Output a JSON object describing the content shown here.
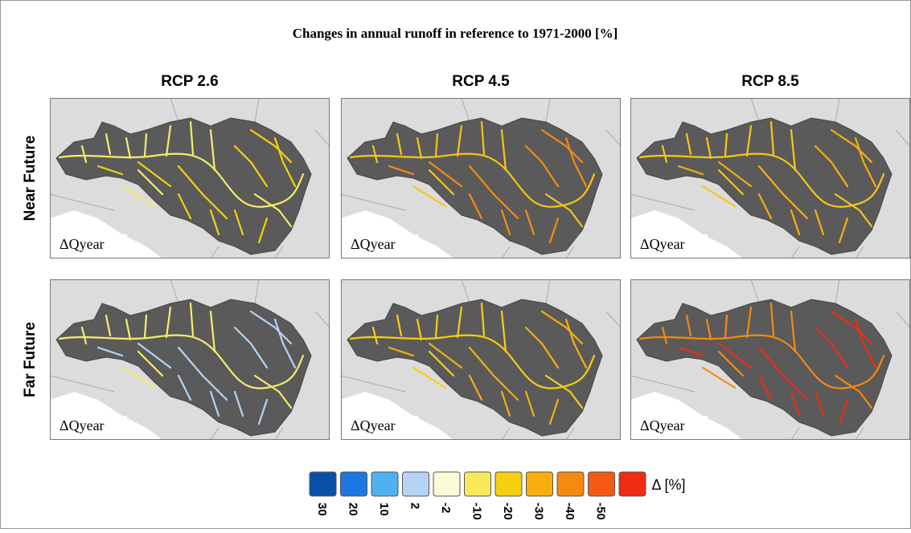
{
  "title": "Changes in annual runoff in reference to 1971-2000 [%]",
  "columns": [
    "RCP 2.6",
    "RCP 4.5",
    "RCP 8.5"
  ],
  "rows": [
    "Near Future",
    "Far Future"
  ],
  "panel_labels": [
    [
      "ΔQyear",
      "ΔQyear",
      "ΔQyear"
    ],
    [
      "ΔQyear",
      "ΔQyear",
      "ΔQyear"
    ]
  ],
  "legend": {
    "unit": "Δ [%]",
    "items": [
      {
        "label": 30,
        "color": "#0a4fa8"
      },
      {
        "label": 20,
        "color": "#1c78e0"
      },
      {
        "label": 10,
        "color": "#4eb2f0"
      },
      {
        "label": 2,
        "color": "#b5d3f5"
      },
      {
        "label": -2,
        "color": "#fbfbd6"
      },
      {
        "label": -10,
        "color": "#f8e85a"
      },
      {
        "label": -20,
        "color": "#f6cf10"
      },
      {
        "label": -30,
        "color": "#f7ad10"
      },
      {
        "label": -40,
        "color": "#f68a10"
      },
      {
        "label": -50,
        "color": "#f45a16"
      },
      {
        "label": null,
        "color": "#f02c14"
      }
    ]
  }
}
